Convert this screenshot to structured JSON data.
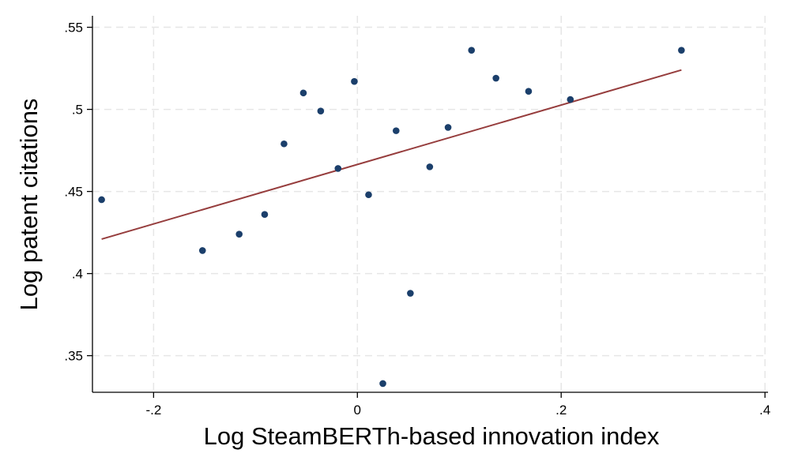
{
  "chart_data": {
    "type": "scatter",
    "xlabel": "Log SteamBERTh-based innovation index",
    "ylabel": "Log patent citations",
    "xlim": [
      -0.26,
      0.403
    ],
    "ylim": [
      0.3277,
      0.557
    ],
    "xticks": [
      -0.2,
      0,
      0.2,
      0.4
    ],
    "xtick_labels": [
      "-.2",
      "0",
      ".2",
      ".4"
    ],
    "yticks": [
      0.35,
      0.4,
      0.45,
      0.5,
      0.55
    ],
    "ytick_labels": [
      ".35",
      ".4",
      ".45",
      ".5",
      ".55"
    ],
    "grid": true,
    "points": {
      "x": [
        -0.251,
        -0.152,
        -0.116,
        -0.091,
        -0.072,
        -0.053,
        -0.036,
        -0.019,
        -0.003,
        0.011,
        0.025,
        0.038,
        0.052,
        0.071,
        0.089,
        0.112,
        0.136,
        0.168,
        0.209,
        0.318
      ],
      "y": [
        0.445,
        0.414,
        0.424,
        0.436,
        0.479,
        0.51,
        0.499,
        0.464,
        0.517,
        0.448,
        0.333,
        0.487,
        0.388,
        0.465,
        0.489,
        0.536,
        0.519,
        0.511,
        0.506,
        0.536
      ]
    },
    "fit_line": {
      "x": [
        -0.251,
        0.318
      ],
      "y": [
        0.421,
        0.524
      ]
    },
    "colors": {
      "points": "#1b3f6b",
      "fit_line": "#963d3d",
      "grid": "#e6e6e6",
      "axis": "#000000"
    }
  }
}
